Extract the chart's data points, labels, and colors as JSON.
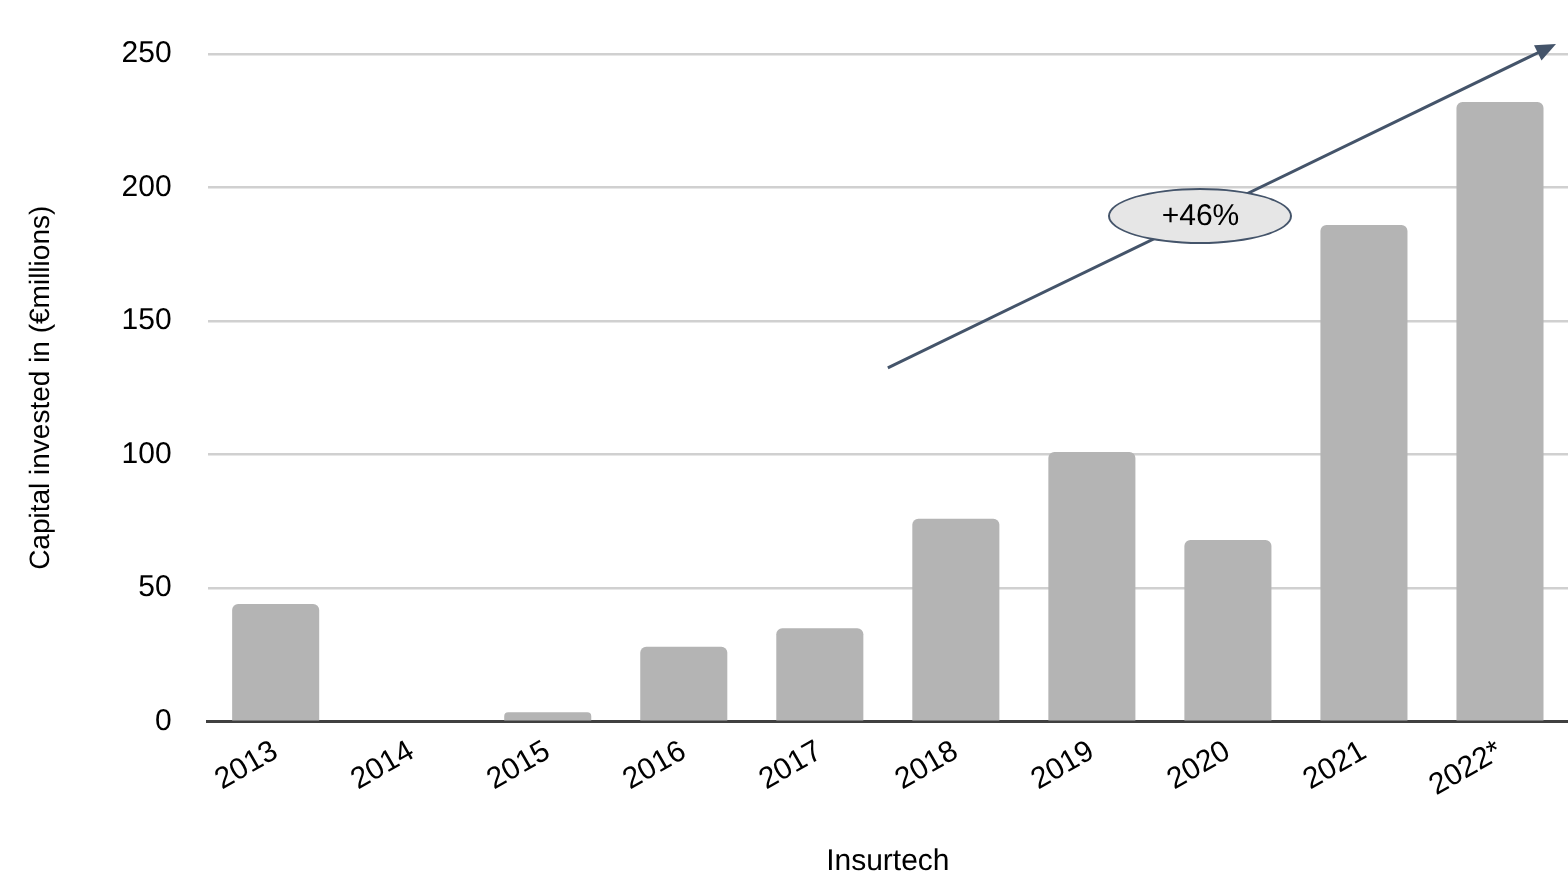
{
  "chart_data": {
    "type": "bar",
    "xlabel": "Insurtech",
    "ylabel": "Capital invested in (€millions)",
    "categories": [
      "2013",
      "2014",
      "2015",
      "2016",
      "2017",
      "2018",
      "2019",
      "2020",
      "2021",
      "2022*"
    ],
    "values": [
      44,
      0,
      3.5,
      28,
      35,
      76,
      101,
      68,
      186,
      232
    ],
    "color": "#b4b4b4",
    "ylim": [
      0,
      250
    ],
    "yticks": [
      0,
      50,
      100,
      150,
      200,
      250
    ],
    "grid": "y",
    "legend": false,
    "annotations": [
      "+46%"
    ]
  }
}
